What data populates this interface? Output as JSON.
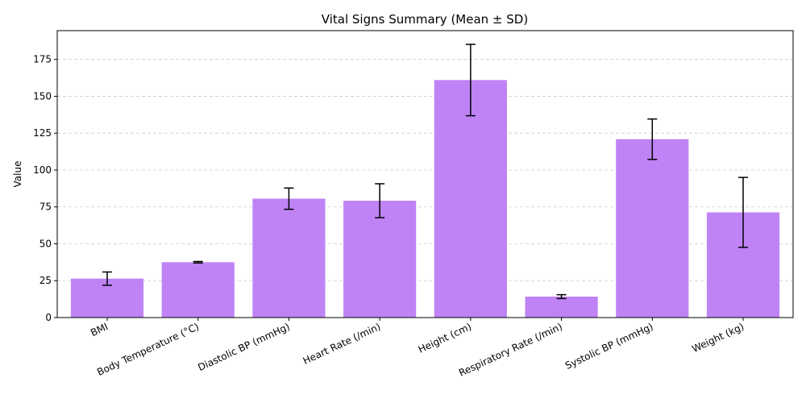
{
  "chart_data": {
    "type": "bar",
    "title": "Vital Signs Summary (Mean ± SD)",
    "xlabel": "",
    "ylabel": "Value",
    "categories": [
      "BMI",
      "Body Temperature (°C)",
      "Diastolic BP (mmHg)",
      "Heart Rate (/min)",
      "Height (cm)",
      "Respiratory Rate (/min)",
      "Systolic BP (mmHg)",
      "Weight (kg)"
    ],
    "values": [
      26.4,
      37.5,
      80.6,
      79.2,
      161.0,
      14.2,
      120.9,
      71.3
    ],
    "errors": [
      4.5,
      0.5,
      7.2,
      11.5,
      24.2,
      1.3,
      13.7,
      23.7
    ],
    "ylim": [
      0,
      194.5
    ],
    "yticks": [
      0,
      25,
      50,
      75,
      100,
      125,
      150,
      175
    ],
    "grid": "y-dashed",
    "bar_color": "#bf83f5",
    "error_color": "#000000"
  }
}
